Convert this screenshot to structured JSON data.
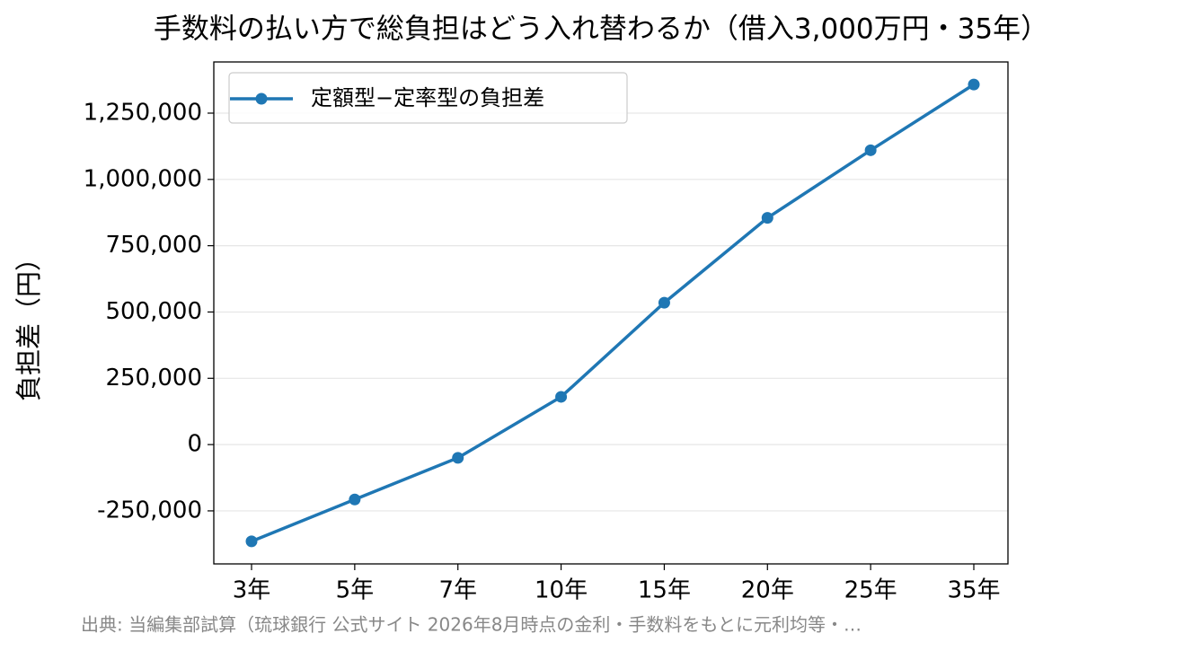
{
  "chart_data": {
    "type": "line",
    "title": "手数料の払い方で総負担はどう入れ替わるか（借入3,000万円・35年）",
    "y_label": "負担差（円）",
    "source": "出典: 当編集部試算（琉球銀行 公式サイト 2026年8月時点の金利・手数料をもとに元利均等・…",
    "categories": [
      "3年",
      "5年",
      "7年",
      "10年",
      "15年",
      "20年",
      "25年",
      "35年"
    ],
    "series": [
      {
        "name": "定額型−定率型の負担差",
        "color": "#1f77b4",
        "values": [
          -365000,
          -207000,
          -50000,
          180000,
          535000,
          855000,
          1110000,
          1358000
        ]
      }
    ],
    "ylim": [
      -450000,
      1443000
    ],
    "yticks": [
      {
        "value": -250000,
        "label": "-250,000"
      },
      0,
      {
        "value": 250000,
        "label": "250,000"
      },
      {
        "value": 500000,
        "label": "500,000"
      },
      {
        "value": 750000,
        "label": "750,000"
      },
      {
        "value": 1000000,
        "label": "1,000,000"
      },
      {
        "value": 1250000,
        "label": "1,250,000"
      }
    ],
    "grid": true,
    "legend": "upper-left"
  }
}
